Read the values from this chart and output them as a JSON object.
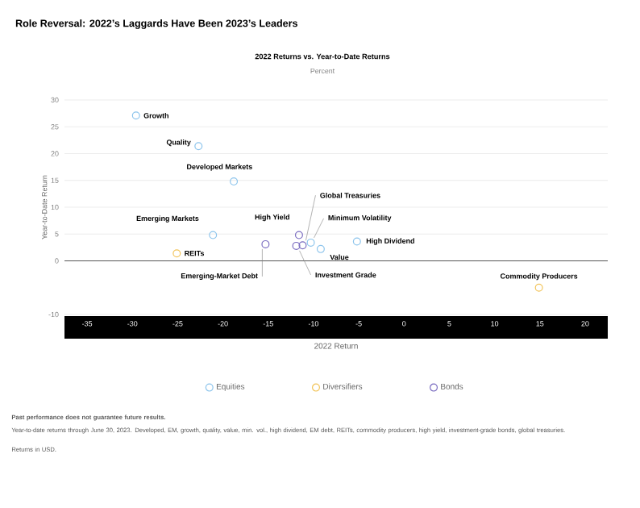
{
  "chart_data": {
    "type": "scatter",
    "title": "Role Reversal: 2022’s Laggards Have Been 2023’s Leaders",
    "subtitle": "2022 Returns vs. Year-to-Date Returns",
    "ylabel": "Year-to-Date Return",
    "xlabel": "2022 Return",
    "clabel": "Percent",
    "series": [
      {
        "name": "Equities",
        "color": "#8cc4ec",
        "x": [
          -29.6,
          -22.7,
          -18.8,
          -21.1,
          -10.3,
          -9.2,
          -5.2
        ],
        "values": [
          27.1,
          21.4,
          14.8,
          4.8,
          3.4,
          2.2,
          3.6
        ]
      },
      {
        "name": "Diversifiers",
        "color": "#f2c45a",
        "x": [
          -25.1,
          14.9
        ],
        "values": [
          1.4,
          -5.0
        ]
      },
      {
        "name": "Bonds",
        "color": "#7a6cc0",
        "x": [
          -15.3,
          -11.6,
          -11.2,
          -11.9
        ],
        "values": [
          3.1,
          4.8,
          2.9,
          2.8
        ]
      }
    ],
    "xlim": [
      -37.5,
      22.5
    ],
    "xticks": [
      -35,
      -30,
      -25,
      -20,
      -15,
      -10,
      -5,
      0,
      5,
      10,
      15,
      20
    ],
    "ylim": [
      -10,
      30
    ],
    "yticks": [
      -10,
      0,
      5,
      10,
      15,
      20,
      25,
      30
    ],
    "grid": "y",
    "marker": "circle",
    "legend": "bottom",
    "ref_lines": [
      {
        "axis": "y",
        "value": 0,
        "color": "#555555"
      }
    ],
    "annotations": [
      {
        "text": "Growth",
        "x": -29.6,
        "y": 27.1
      },
      {
        "text": "Quality",
        "x": -22.7,
        "y": 21.4
      },
      {
        "text": "Developed Markets",
        "x": -18.8,
        "y": 14.8
      },
      {
        "text": "Emerging Markets",
        "x": -21.1,
        "y": 4.8
      },
      {
        "text": "REITs",
        "x": -25.1,
        "y": 1.4
      },
      {
        "text": "Emerging-Market Debt",
        "x": -15.3,
        "y": 3.1
      },
      {
        "text": "High Yield",
        "x": -11.6,
        "y": 4.8
      },
      {
        "text": "Global Treasuries",
        "x": -11.2,
        "y": 2.9
      },
      {
        "text": "Minimum Volatility",
        "x": -10.3,
        "y": 3.4
      },
      {
        "text": "Investment Grade",
        "x": -11.9,
        "y": 2.8
      },
      {
        "text": "Value",
        "x": -9.2,
        "y": 2.2
      },
      {
        "text": "High Dividend",
        "x": -5.2,
        "y": 3.6
      },
      {
        "text": "Commodity Producers",
        "x": 14.9,
        "y": -5.0
      },
      "Past performance does not guarantee future results.",
      "Year-to-date returns through June 30, 2023. Developed, EM, growth, quality, value, min. vol., high dividend, EM debt, REITs, commodity producers, high yield, investment-grade bonds, global treasuries.",
      "Returns in USD."
    ]
  }
}
